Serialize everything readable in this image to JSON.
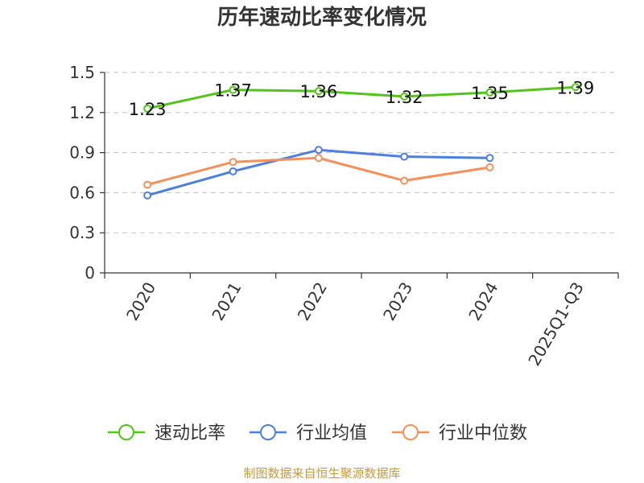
{
  "chart_data": {
    "type": "line",
    "title": "历年速动比率变化情况",
    "categories": [
      "2020",
      "2021",
      "2022",
      "2023",
      "2024",
      "2025Q1-Q3"
    ],
    "series": [
      {
        "name": "速动比率",
        "color": "#52c41a",
        "values": [
          1.23,
          1.37,
          1.36,
          1.32,
          1.35,
          1.39
        ],
        "show_labels": true
      },
      {
        "name": "行业均值",
        "color": "#4e7fde",
        "values": [
          0.58,
          0.76,
          0.92,
          0.87,
          0.86,
          null
        ],
        "show_labels": false
      },
      {
        "name": "行业中位数",
        "color": "#f5905a",
        "values": [
          0.66,
          0.83,
          0.86,
          0.69,
          0.79,
          null
        ],
        "show_labels": false
      }
    ],
    "y_ticks": [
      0,
      0.3,
      0.6,
      0.9,
      1.2,
      1.5
    ],
    "ylim": [
      0,
      1.5
    ],
    "grid": true,
    "legend": "bottom"
  },
  "footer": {
    "source": "制图数据来自恒生聚源数据库",
    "source_color": "#c79a3a"
  }
}
